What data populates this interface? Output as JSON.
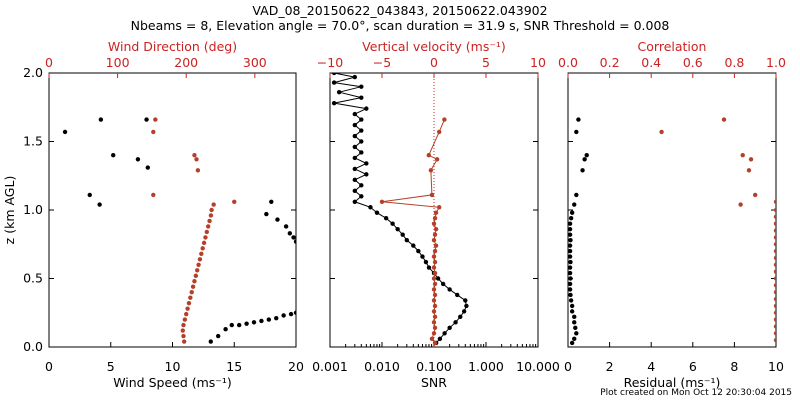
{
  "title_line1": "VAD_08_20150622_043843, 20150622.043902",
  "title_line2": "Nbeams = 8, Elevation angle = 70.0°, scan duration = 31.9 s, SNR Threshold = 0.008",
  "footer": "Plot created on Mon Oct 12 20:30:04 2015",
  "colors": {
    "black": "#000000",
    "red": "#b5402a",
    "red_axis": "#cc2222"
  },
  "chart_data": [
    {
      "type": "scatter",
      "panel": "wind",
      "ylabel": "z (km AGL)",
      "ylim": [
        0,
        2
      ],
      "y_ticks": [
        "0.0",
        "0.5",
        "1.0",
        "1.5",
        "2.0"
      ],
      "bottom_axis": {
        "label": "Wind Speed (ms⁻¹)",
        "range": [
          0,
          20
        ],
        "ticks": [
          "0",
          "5",
          "10",
          "15",
          "20"
        ]
      },
      "top_axis": {
        "label": "Wind Direction (deg)",
        "range": [
          0,
          360
        ],
        "ticks": [
          "0",
          "100",
          "200",
          "300"
        ]
      },
      "series": [
        {
          "name": "Wind Speed",
          "axis": "bottom",
          "color": "#000000",
          "points": [
            [
              1.3,
              1.57
            ],
            [
              4.2,
              1.66
            ],
            [
              7.9,
              1.66
            ],
            [
              5.2,
              1.4
            ],
            [
              7.2,
              1.37
            ],
            [
              8.0,
              1.31
            ],
            [
              3.3,
              1.11
            ],
            [
              4.1,
              1.04
            ],
            [
              18.0,
              1.06
            ],
            [
              17.6,
              0.97
            ],
            [
              18.5,
              0.93
            ],
            [
              19.2,
              0.88
            ],
            [
              19.5,
              0.83
            ],
            [
              19.8,
              0.8
            ],
            [
              20.0,
              0.77
            ],
            [
              13.1,
              0.04
            ],
            [
              13.7,
              0.08
            ],
            [
              14.3,
              0.13
            ],
            [
              14.8,
              0.16
            ],
            [
              15.4,
              0.16
            ],
            [
              16.0,
              0.17
            ],
            [
              16.6,
              0.18
            ],
            [
              17.2,
              0.19
            ],
            [
              17.8,
              0.2
            ],
            [
              18.4,
              0.21
            ],
            [
              19.0,
              0.23
            ],
            [
              19.6,
              0.24
            ],
            [
              20.0,
              0.25
            ]
          ]
        },
        {
          "name": "Wind Direction",
          "axis": "top",
          "color": "#b5402a",
          "points": [
            [
              155,
              1.66
            ],
            [
              152,
              1.57
            ],
            [
              212,
              1.4
            ],
            [
              215,
              1.37
            ],
            [
              217,
              1.29
            ],
            [
              152,
              1.11
            ],
            [
              270,
              1.06
            ],
            [
              240,
              1.04
            ],
            [
              237,
              1.0
            ],
            [
              236,
              0.96
            ],
            [
              234,
              0.92
            ],
            [
              232,
              0.88
            ],
            [
              230,
              0.84
            ],
            [
              228,
              0.8
            ],
            [
              226,
              0.76
            ],
            [
              224,
              0.72
            ],
            [
              222,
              0.68
            ],
            [
              220,
              0.64
            ],
            [
              218,
              0.6
            ],
            [
              216,
              0.56
            ],
            [
              214,
              0.52
            ],
            [
              212,
              0.48
            ],
            [
              210,
              0.44
            ],
            [
              208,
              0.4
            ],
            [
              206,
              0.36
            ],
            [
              204,
              0.32
            ],
            [
              202,
              0.28
            ],
            [
              200,
              0.24
            ],
            [
              198,
              0.2
            ],
            [
              196,
              0.16
            ],
            [
              195,
              0.12
            ],
            [
              196,
              0.08
            ],
            [
              197,
              0.04
            ]
          ]
        }
      ]
    },
    {
      "type": "line",
      "panel": "vertical-velocity",
      "ylim": [
        0,
        2
      ],
      "bottom_axis": {
        "label": "SNR",
        "scale": "log",
        "range": [
          0.001,
          10
        ],
        "ticks": [
          "0.001",
          "0.010",
          "0.100",
          "1.000",
          "10.000"
        ]
      },
      "top_axis": {
        "label": "Vertical velocity (ms⁻¹)",
        "range": [
          -10,
          10
        ],
        "ticks": [
          "−10",
          "−5",
          "0",
          "5",
          "10"
        ]
      },
      "series": [
        {
          "name": "SNR",
          "axis": "bottom",
          "color": "#000000",
          "points": [
            [
              0.0012,
              2.0
            ],
            [
              0.003,
              1.97
            ],
            [
              0.0012,
              1.93
            ],
            [
              0.004,
              1.9
            ],
            [
              0.0015,
              1.86
            ],
            [
              0.004,
              1.82
            ],
            [
              0.0012,
              1.78
            ],
            [
              0.005,
              1.74
            ],
            [
              0.003,
              1.7
            ],
            [
              0.004,
              1.66
            ],
            [
              0.003,
              1.62
            ],
            [
              0.004,
              1.58
            ],
            [
              0.003,
              1.54
            ],
            [
              0.004,
              1.5
            ],
            [
              0.003,
              1.46
            ],
            [
              0.004,
              1.42
            ],
            [
              0.003,
              1.38
            ],
            [
              0.005,
              1.34
            ],
            [
              0.003,
              1.3
            ],
            [
              0.005,
              1.26
            ],
            [
              0.003,
              1.22
            ],
            [
              0.004,
              1.18
            ],
            [
              0.003,
              1.14
            ],
            [
              0.004,
              1.1
            ],
            [
              0.003,
              1.06
            ],
            [
              0.006,
              1.02
            ],
            [
              0.008,
              0.98
            ],
            [
              0.012,
              0.94
            ],
            [
              0.016,
              0.9
            ],
            [
              0.02,
              0.86
            ],
            [
              0.025,
              0.82
            ],
            [
              0.03,
              0.78
            ],
            [
              0.04,
              0.74
            ],
            [
              0.05,
              0.7
            ],
            [
              0.06,
              0.66
            ],
            [
              0.07,
              0.62
            ],
            [
              0.08,
              0.58
            ],
            [
              0.1,
              0.54
            ],
            [
              0.12,
              0.5
            ],
            [
              0.15,
              0.46
            ],
            [
              0.2,
              0.42
            ],
            [
              0.28,
              0.38
            ],
            [
              0.4,
              0.34
            ],
            [
              0.42,
              0.3
            ],
            [
              0.38,
              0.26
            ],
            [
              0.32,
              0.22
            ],
            [
              0.26,
              0.18
            ],
            [
              0.2,
              0.14
            ],
            [
              0.16,
              0.1
            ],
            [
              0.13,
              0.06
            ],
            [
              0.11,
              0.03
            ]
          ]
        },
        {
          "name": "Vertical velocity",
          "axis": "top",
          "color": "#b5402a",
          "points": [
            [
              1.0,
              1.66
            ],
            [
              0.5,
              1.57
            ],
            [
              -0.5,
              1.4
            ],
            [
              0.3,
              1.37
            ],
            [
              -0.3,
              1.29
            ],
            [
              -0.2,
              1.11
            ],
            [
              -5.0,
              1.06
            ],
            [
              0.5,
              1.02
            ],
            [
              0.2,
              0.98
            ],
            [
              0.1,
              0.94
            ],
            [
              0.0,
              0.9
            ],
            [
              0.2,
              0.86
            ],
            [
              0.1,
              0.82
            ],
            [
              0.0,
              0.78
            ],
            [
              0.2,
              0.74
            ],
            [
              0.1,
              0.7
            ],
            [
              0.0,
              0.66
            ],
            [
              0.1,
              0.62
            ],
            [
              0.0,
              0.58
            ],
            [
              0.1,
              0.54
            ],
            [
              0.0,
              0.5
            ],
            [
              0.1,
              0.46
            ],
            [
              0.0,
              0.42
            ],
            [
              0.1,
              0.38
            ],
            [
              0.0,
              0.34
            ],
            [
              0.1,
              0.3
            ],
            [
              0.0,
              0.26
            ],
            [
              0.1,
              0.22
            ],
            [
              0.0,
              0.18
            ],
            [
              0.1,
              0.14
            ],
            [
              0.0,
              0.1
            ],
            [
              -0.2,
              0.06
            ],
            [
              0.1,
              0.03
            ]
          ]
        }
      ]
    },
    {
      "type": "scatter",
      "panel": "correlation",
      "ylim": [
        0,
        2
      ],
      "bottom_axis": {
        "label": "Residual (ms⁻¹)",
        "range": [
          0,
          10
        ],
        "ticks": [
          "0",
          "2",
          "4",
          "6",
          "8",
          "10"
        ]
      },
      "top_axis": {
        "label": "Correlation",
        "range": [
          0,
          1
        ],
        "ticks": [
          "0.0",
          "0.2",
          "0.4",
          "0.6",
          "0.8",
          "1.0"
        ]
      },
      "series": [
        {
          "name": "Residual",
          "axis": "bottom",
          "color": "#000000",
          "points": [
            [
              0.5,
              1.66
            ],
            [
              0.4,
              1.57
            ],
            [
              0.9,
              1.4
            ],
            [
              0.8,
              1.37
            ],
            [
              0.7,
              1.29
            ],
            [
              0.4,
              1.11
            ],
            [
              0.3,
              1.04
            ],
            [
              0.2,
              0.98
            ],
            [
              0.15,
              0.94
            ],
            [
              0.1,
              0.9
            ],
            [
              0.1,
              0.86
            ],
            [
              0.1,
              0.82
            ],
            [
              0.12,
              0.78
            ],
            [
              0.1,
              0.74
            ],
            [
              0.1,
              0.7
            ],
            [
              0.1,
              0.66
            ],
            [
              0.12,
              0.62
            ],
            [
              0.1,
              0.58
            ],
            [
              0.1,
              0.54
            ],
            [
              0.12,
              0.5
            ],
            [
              0.1,
              0.46
            ],
            [
              0.1,
              0.42
            ],
            [
              0.12,
              0.38
            ],
            [
              0.15,
              0.34
            ],
            [
              0.2,
              0.3
            ],
            [
              0.2,
              0.26
            ],
            [
              0.3,
              0.22
            ],
            [
              0.3,
              0.18
            ],
            [
              0.35,
              0.14
            ],
            [
              0.4,
              0.1
            ],
            [
              0.3,
              0.06
            ],
            [
              0.2,
              0.03
            ]
          ]
        },
        {
          "name": "Correlation",
          "axis": "top",
          "color": "#b5402a",
          "points": [
            [
              0.45,
              1.57
            ],
            [
              0.75,
              1.66
            ],
            [
              0.84,
              1.4
            ],
            [
              0.88,
              1.37
            ],
            [
              0.87,
              1.29
            ],
            [
              0.9,
              1.11
            ],
            [
              0.83,
              1.04
            ],
            [
              1.0,
              1.06
            ],
            [
              1.0,
              1.0
            ],
            [
              1.0,
              0.95
            ],
            [
              1.0,
              0.9
            ],
            [
              1.0,
              0.85
            ],
            [
              1.0,
              0.8
            ],
            [
              1.0,
              0.75
            ],
            [
              1.0,
              0.7
            ],
            [
              1.0,
              0.65
            ],
            [
              1.0,
              0.6
            ],
            [
              1.0,
              0.55
            ],
            [
              1.0,
              0.5
            ],
            [
              1.0,
              0.45
            ],
            [
              1.0,
              0.4
            ],
            [
              1.0,
              0.35
            ],
            [
              1.0,
              0.3
            ],
            [
              1.0,
              0.25
            ],
            [
              1.0,
              0.2
            ],
            [
              1.0,
              0.15
            ],
            [
              1.0,
              0.1
            ],
            [
              1.0,
              0.05
            ]
          ]
        }
      ]
    }
  ]
}
